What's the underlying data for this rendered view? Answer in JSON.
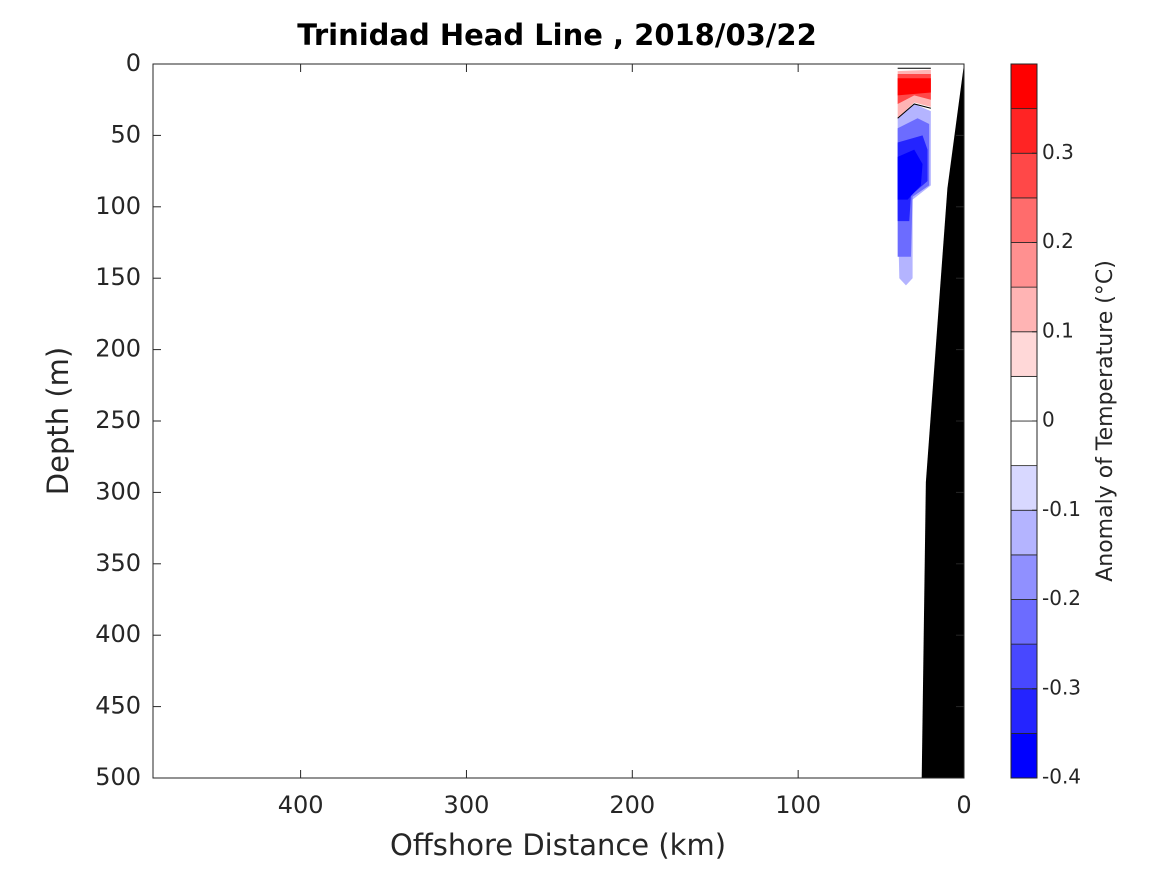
{
  "chart_data": {
    "type": "contour",
    "title": "Trinidad Head Line , 2018/03/22",
    "x_label": "Offshore Distance (km)",
    "y_label": "Depth (m)",
    "xlim": [
      489,
      0
    ],
    "xticks": [
      400,
      300,
      200,
      100,
      0
    ],
    "ylim": [
      0,
      500
    ],
    "yticks": [
      0,
      50,
      100,
      150,
      200,
      250,
      300,
      350,
      400,
      450,
      500
    ],
    "bathymetry": {
      "color": "#000000",
      "points": [
        [
          0,
          0
        ],
        [
          10,
          87
        ],
        [
          23,
          293
        ],
        [
          25.5,
          500
        ],
        [
          0,
          500
        ]
      ]
    },
    "regions": [
      {
        "level": -0.125,
        "points": [
          [
            40,
            38
          ],
          [
            30,
            28
          ],
          [
            20,
            33
          ],
          [
            20,
            85
          ],
          [
            31,
            95
          ],
          [
            31,
            150
          ],
          [
            35,
            155
          ],
          [
            39,
            150
          ],
          [
            40,
            100
          ]
        ]
      },
      {
        "level": -0.225,
        "points": [
          [
            40,
            45
          ],
          [
            28,
            38
          ],
          [
            21,
            42
          ],
          [
            21,
            85
          ],
          [
            31,
            93
          ],
          [
            32,
            135
          ],
          [
            40,
            135
          ]
        ]
      },
      {
        "level": -0.325,
        "points": [
          [
            40,
            55
          ],
          [
            25,
            50
          ],
          [
            22,
            60
          ],
          [
            22,
            82
          ],
          [
            32,
            92
          ],
          [
            33,
            110
          ],
          [
            40,
            110
          ]
        ]
      },
      {
        "level": -0.375,
        "points": [
          [
            40,
            65
          ],
          [
            30,
            60
          ],
          [
            25,
            70
          ],
          [
            26,
            85
          ],
          [
            34,
            95
          ],
          [
            40,
            95
          ]
        ]
      },
      {
        "level": 0.125,
        "points": [
          [
            40,
            5
          ],
          [
            20,
            4
          ],
          [
            20,
            30
          ],
          [
            30,
            27
          ],
          [
            40,
            38
          ]
        ]
      },
      {
        "level": 0.275,
        "points": [
          [
            40,
            7
          ],
          [
            20,
            7
          ],
          [
            20,
            25
          ],
          [
            30,
            22
          ],
          [
            40,
            28
          ]
        ]
      },
      {
        "level": 0.375,
        "points": [
          [
            40,
            10
          ],
          [
            20,
            10
          ],
          [
            20,
            20
          ],
          [
            40,
            22
          ]
        ]
      }
    ],
    "zero_contours": [
      [
        [
          40,
          3
        ],
        [
          20,
          3
        ]
      ],
      [
        [
          40,
          38
        ],
        [
          30,
          28
        ],
        [
          20,
          31
        ]
      ]
    ],
    "colorbar": {
      "label": "Anomaly of Temperature (°C)",
      "levels": [
        -0.4,
        -0.35,
        -0.3,
        -0.25,
        -0.2,
        -0.15,
        -0.1,
        -0.05,
        0,
        0.05,
        0.1,
        0.15,
        0.2,
        0.25,
        0.3,
        0.35,
        0.4
      ],
      "colors": [
        "#0000ff",
        "#2424ff",
        "#4848ff",
        "#6c6cff",
        "#9090ff",
        "#b4b4ff",
        "#d8d8ff",
        "#ffffff",
        "#ffffff",
        "#ffd8d8",
        "#ffb4b4",
        "#ff9090",
        "#ff6c6c",
        "#ff4848",
        "#ff2424",
        "#ff0000"
      ],
      "ticks": [
        -0.4,
        -0.3,
        -0.2,
        -0.1,
        0,
        0.1,
        0.2,
        0.3
      ]
    }
  }
}
